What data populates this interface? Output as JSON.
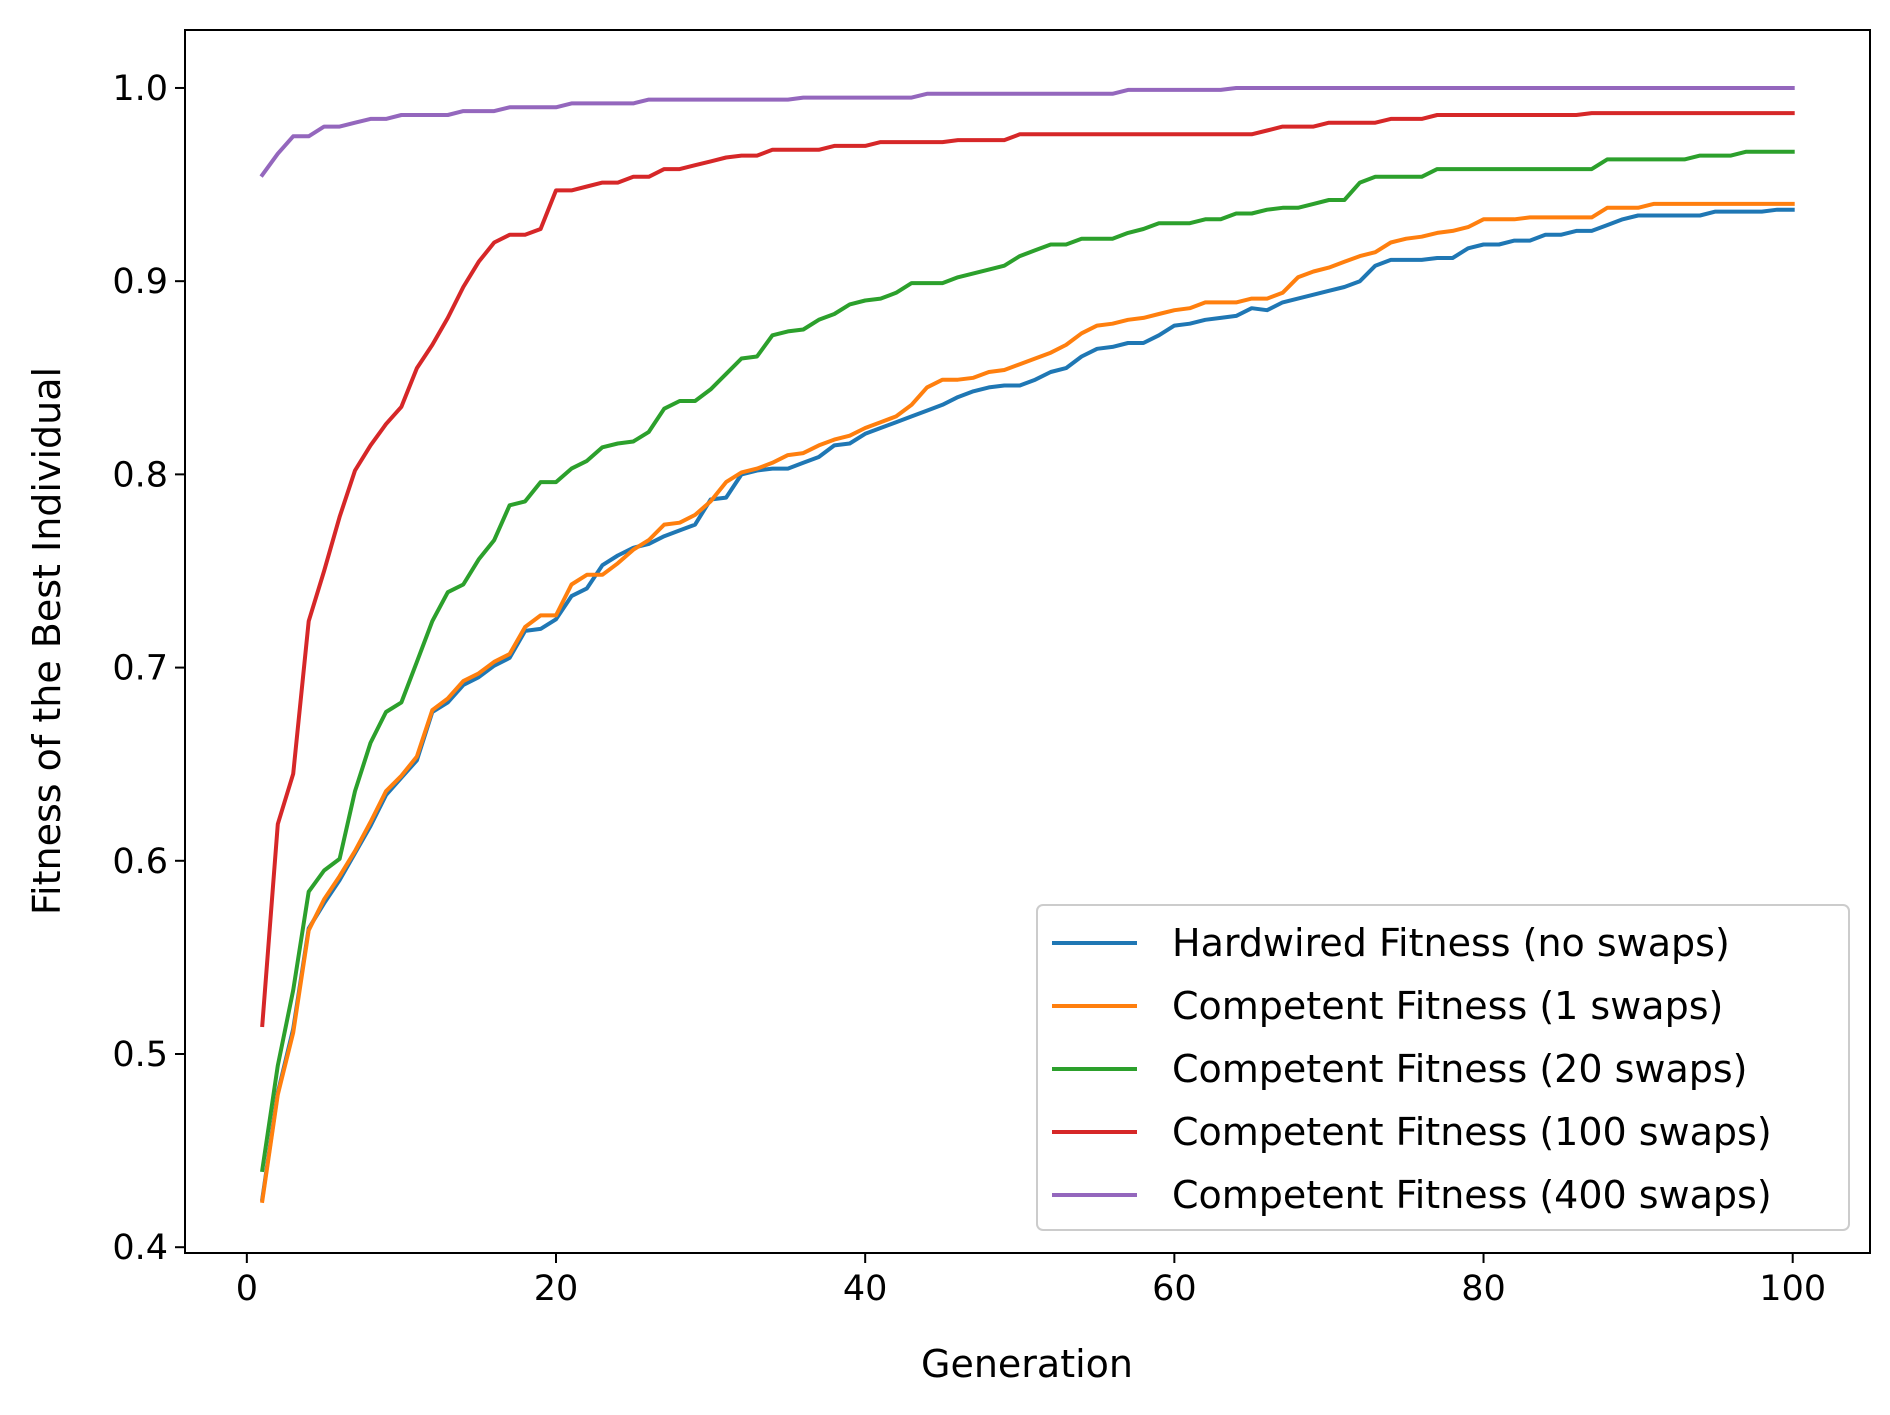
{
  "chart_data": {
    "type": "line",
    "title": "",
    "xlabel": "Generation",
    "ylabel": "Fitness of the Best Individual",
    "xlim": [
      -4,
      105
    ],
    "ylim": [
      0.397,
      1.03
    ],
    "xticks": [
      0,
      20,
      40,
      60,
      80,
      100
    ],
    "xtick_labels": [
      "0",
      "20",
      "40",
      "60",
      "80",
      "100"
    ],
    "yticks": [
      0.4,
      0.5,
      0.6,
      0.7,
      0.8,
      0.9,
      1.0
    ],
    "ytick_labels": [
      "0.4",
      "0.5",
      "0.6",
      "0.7",
      "0.8",
      "0.9",
      "1.0"
    ],
    "grid": false,
    "legend_position": "lower-right",
    "x": [
      1,
      2,
      3,
      4,
      5,
      6,
      7,
      8,
      9,
      10,
      11,
      12,
      13,
      14,
      15,
      16,
      17,
      18,
      19,
      20,
      21,
      22,
      23,
      24,
      25,
      26,
      27,
      28,
      29,
      30,
      31,
      32,
      33,
      34,
      35,
      36,
      37,
      38,
      39,
      40,
      41,
      42,
      43,
      44,
      45,
      46,
      47,
      48,
      49,
      50,
      51,
      52,
      53,
      54,
      55,
      56,
      57,
      58,
      59,
      60,
      61,
      62,
      63,
      64,
      65,
      66,
      67,
      68,
      69,
      70,
      71,
      72,
      73,
      74,
      75,
      76,
      77,
      78,
      79,
      80,
      81,
      82,
      83,
      84,
      85,
      86,
      87,
      88,
      89,
      90,
      91,
      92,
      93,
      94,
      95,
      96,
      97,
      98,
      99,
      100
    ],
    "series": [
      {
        "name": "Hardwired Fitness (no swaps)",
        "color": "#1f77b4",
        "values": [
          0.425,
          0.48,
          0.513,
          0.565,
          0.578,
          0.59,
          0.604,
          0.618,
          0.634,
          0.643,
          0.652,
          0.677,
          0.682,
          0.691,
          0.695,
          0.701,
          0.705,
          0.719,
          0.72,
          0.725,
          0.737,
          0.741,
          0.753,
          0.758,
          0.762,
          0.764,
          0.768,
          0.771,
          0.774,
          0.787,
          0.788,
          0.8,
          0.802,
          0.803,
          0.803,
          0.806,
          0.809,
          0.815,
          0.816,
          0.821,
          0.824,
          0.827,
          0.83,
          0.833,
          0.836,
          0.84,
          0.843,
          0.845,
          0.846,
          0.846,
          0.849,
          0.853,
          0.855,
          0.861,
          0.865,
          0.866,
          0.868,
          0.868,
          0.872,
          0.877,
          0.878,
          0.88,
          0.881,
          0.882,
          0.886,
          0.885,
          0.889,
          0.891,
          0.893,
          0.895,
          0.897,
          0.9,
          0.908,
          0.911,
          0.911,
          0.911,
          0.912,
          0.912,
          0.917,
          0.919,
          0.919,
          0.921,
          0.921,
          0.924,
          0.924,
          0.926,
          0.926,
          0.929,
          0.932,
          0.934,
          0.934,
          0.934,
          0.934,
          0.934,
          0.936,
          0.936,
          0.936,
          0.936,
          0.937,
          0.937
        ]
      },
      {
        "name": "Competent Fitness (1 swaps)",
        "color": "#ff7f0e",
        "values": [
          0.424,
          0.479,
          0.511,
          0.564,
          0.58,
          0.592,
          0.605,
          0.62,
          0.636,
          0.644,
          0.654,
          0.678,
          0.684,
          0.693,
          0.697,
          0.703,
          0.707,
          0.721,
          0.727,
          0.727,
          0.743,
          0.748,
          0.748,
          0.754,
          0.761,
          0.766,
          0.774,
          0.775,
          0.779,
          0.786,
          0.796,
          0.801,
          0.803,
          0.806,
          0.81,
          0.811,
          0.815,
          0.818,
          0.82,
          0.824,
          0.827,
          0.83,
          0.836,
          0.845,
          0.849,
          0.849,
          0.85,
          0.853,
          0.854,
          0.857,
          0.86,
          0.863,
          0.867,
          0.873,
          0.877,
          0.878,
          0.88,
          0.881,
          0.883,
          0.885,
          0.886,
          0.889,
          0.889,
          0.889,
          0.891,
          0.891,
          0.894,
          0.902,
          0.905,
          0.907,
          0.91,
          0.913,
          0.915,
          0.92,
          0.922,
          0.923,
          0.925,
          0.926,
          0.928,
          0.932,
          0.932,
          0.932,
          0.933,
          0.933,
          0.933,
          0.933,
          0.933,
          0.938,
          0.938,
          0.938,
          0.94,
          0.94,
          0.94,
          0.94,
          0.94,
          0.94,
          0.94,
          0.94,
          0.94,
          0.94
        ]
      },
      {
        "name": "Competent Fitness (20 swaps)",
        "color": "#2ca02c",
        "values": [
          0.44,
          0.494,
          0.533,
          0.584,
          0.595,
          0.601,
          0.636,
          0.661,
          0.677,
          0.682,
          0.703,
          0.724,
          0.739,
          0.743,
          0.756,
          0.766,
          0.784,
          0.786,
          0.796,
          0.796,
          0.803,
          0.807,
          0.814,
          0.816,
          0.817,
          0.822,
          0.834,
          0.838,
          0.838,
          0.844,
          0.852,
          0.86,
          0.861,
          0.872,
          0.874,
          0.875,
          0.88,
          0.883,
          0.888,
          0.89,
          0.891,
          0.894,
          0.899,
          0.899,
          0.899,
          0.902,
          0.904,
          0.906,
          0.908,
          0.913,
          0.916,
          0.919,
          0.919,
          0.922,
          0.922,
          0.922,
          0.925,
          0.927,
          0.93,
          0.93,
          0.93,
          0.932,
          0.932,
          0.935,
          0.935,
          0.937,
          0.938,
          0.938,
          0.94,
          0.942,
          0.942,
          0.951,
          0.954,
          0.954,
          0.954,
          0.954,
          0.958,
          0.958,
          0.958,
          0.958,
          0.958,
          0.958,
          0.958,
          0.958,
          0.958,
          0.958,
          0.958,
          0.963,
          0.963,
          0.963,
          0.963,
          0.963,
          0.963,
          0.965,
          0.965,
          0.965,
          0.967,
          0.967,
          0.967,
          0.967
        ]
      },
      {
        "name": "Competent Fitness (100 swaps)",
        "color": "#d62728",
        "values": [
          0.515,
          0.619,
          0.645,
          0.724,
          0.75,
          0.778,
          0.802,
          0.815,
          0.826,
          0.835,
          0.855,
          0.867,
          0.881,
          0.897,
          0.91,
          0.92,
          0.924,
          0.924,
          0.927,
          0.947,
          0.947,
          0.949,
          0.951,
          0.951,
          0.954,
          0.954,
          0.958,
          0.958,
          0.96,
          0.962,
          0.964,
          0.965,
          0.965,
          0.968,
          0.968,
          0.968,
          0.968,
          0.97,
          0.97,
          0.97,
          0.972,
          0.972,
          0.972,
          0.972,
          0.972,
          0.973,
          0.973,
          0.973,
          0.973,
          0.976,
          0.976,
          0.976,
          0.976,
          0.976,
          0.976,
          0.976,
          0.976,
          0.976,
          0.976,
          0.976,
          0.976,
          0.976,
          0.976,
          0.976,
          0.976,
          0.978,
          0.98,
          0.98,
          0.98,
          0.982,
          0.982,
          0.982,
          0.982,
          0.984,
          0.984,
          0.984,
          0.986,
          0.986,
          0.986,
          0.986,
          0.986,
          0.986,
          0.986,
          0.986,
          0.986,
          0.986,
          0.987,
          0.987,
          0.987,
          0.987,
          0.987,
          0.987,
          0.987,
          0.987,
          0.987,
          0.987,
          0.987,
          0.987,
          0.987,
          0.987
        ]
      },
      {
        "name": "Competent Fitness (400 swaps)",
        "color": "#9467bd",
        "values": [
          0.955,
          0.966,
          0.975,
          0.975,
          0.98,
          0.98,
          0.982,
          0.984,
          0.984,
          0.986,
          0.986,
          0.986,
          0.986,
          0.988,
          0.988,
          0.988,
          0.99,
          0.99,
          0.99,
          0.99,
          0.992,
          0.992,
          0.992,
          0.992,
          0.992,
          0.994,
          0.994,
          0.994,
          0.994,
          0.994,
          0.994,
          0.994,
          0.994,
          0.994,
          0.994,
          0.995,
          0.995,
          0.995,
          0.995,
          0.995,
          0.995,
          0.995,
          0.995,
          0.997,
          0.997,
          0.997,
          0.997,
          0.997,
          0.997,
          0.997,
          0.997,
          0.997,
          0.997,
          0.997,
          0.997,
          0.997,
          0.999,
          0.999,
          0.999,
          0.999,
          0.999,
          0.999,
          0.999,
          1.0,
          1.0,
          1.0,
          1.0,
          1.0,
          1.0,
          1.0,
          1.0,
          1.0,
          1.0,
          1.0,
          1.0,
          1.0,
          1.0,
          1.0,
          1.0,
          1.0,
          1.0,
          1.0,
          1.0,
          1.0,
          1.0,
          1.0,
          1.0,
          1.0,
          1.0,
          1.0,
          1.0,
          1.0,
          1.0,
          1.0,
          1.0,
          1.0,
          1.0,
          1.0,
          1.0,
          1.0
        ]
      }
    ]
  }
}
